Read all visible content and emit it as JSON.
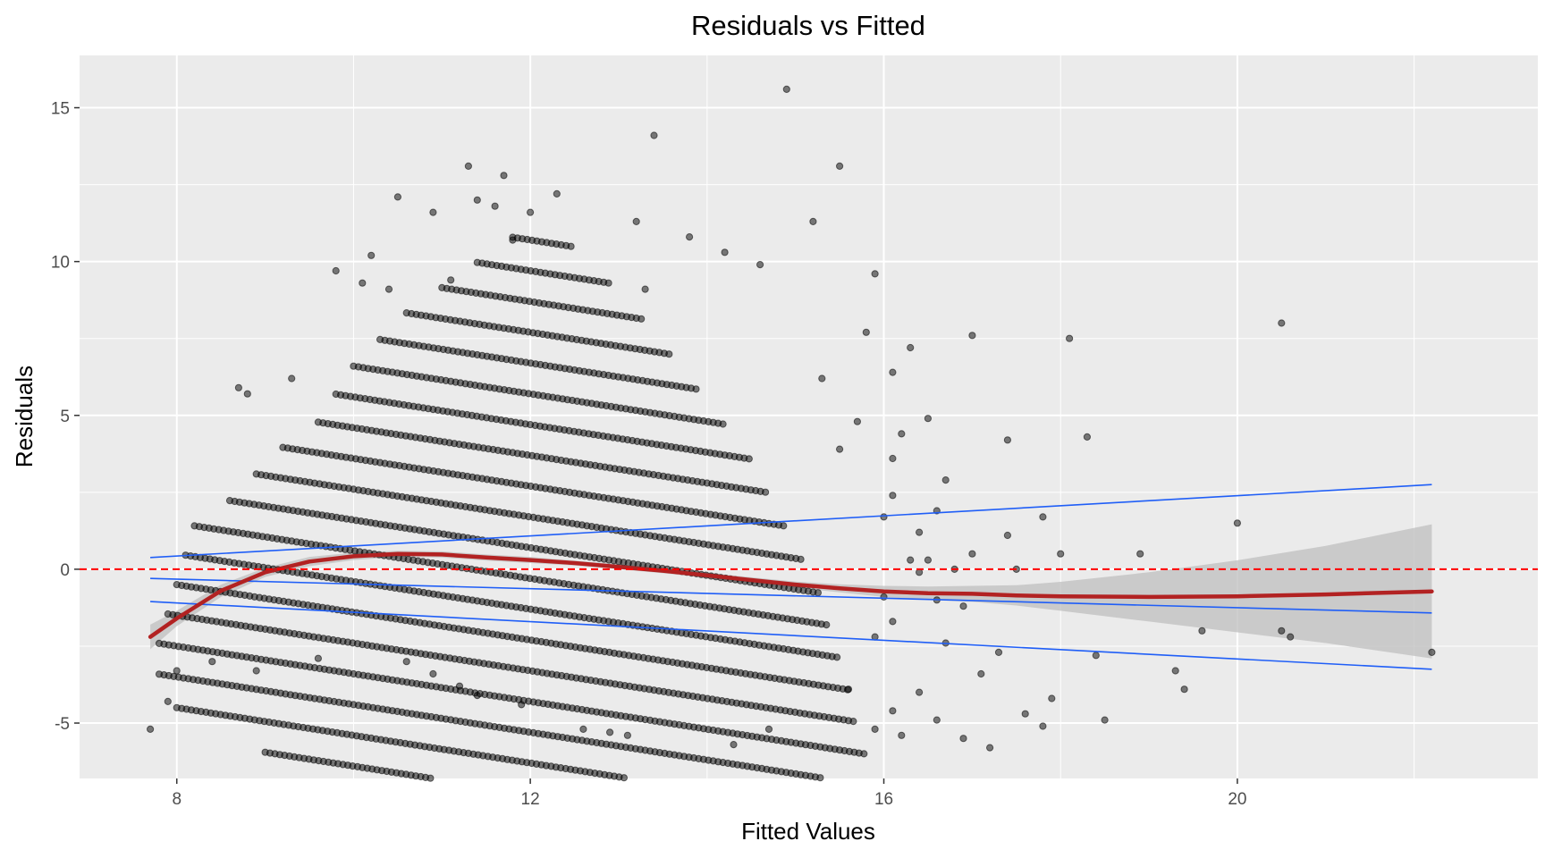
{
  "chart_data": {
    "type": "scatter",
    "title": "Residuals vs Fitted",
    "xlabel": "Fitted Values",
    "ylabel": "Residuals",
    "xlim": [
      6.9,
      23.4
    ],
    "ylim": [
      -6.8,
      16.7
    ],
    "x_ticks": [
      8,
      12,
      16,
      20
    ],
    "x_tick_labels": [
      "8",
      "12",
      "16",
      "20"
    ],
    "y_ticks": [
      -5,
      0,
      5,
      10,
      15
    ],
    "y_tick_labels": [
      "-5",
      "0",
      "5",
      "10",
      "15"
    ],
    "grid": true,
    "reference_line": {
      "y": 0,
      "color": "#ff0000",
      "style": "dashed"
    },
    "colors": {
      "panel": "#ebebeb",
      "grid": "#ffffff",
      "points": "#000000",
      "smooth": "#b22222",
      "band": "#bfbfbf",
      "quantile_lines": "#1f5ef7"
    },
    "smooth": {
      "x": [
        7.7,
        8.0,
        8.5,
        9.0,
        9.5,
        10.0,
        10.5,
        11.0,
        11.5,
        12.0,
        12.5,
        13.0,
        13.5,
        14.0,
        14.5,
        15.0,
        15.5,
        16.0,
        16.5,
        17.0,
        17.5,
        18.0,
        19.0,
        20.0,
        21.0,
        22.2
      ],
      "y": [
        -2.2,
        -1.6,
        -0.7,
        -0.1,
        0.25,
        0.42,
        0.5,
        0.48,
        0.38,
        0.3,
        0.2,
        0.08,
        -0.05,
        -0.2,
        -0.35,
        -0.5,
        -0.62,
        -0.72,
        -0.78,
        -0.8,
        -0.85,
        -0.88,
        -0.9,
        -0.88,
        -0.82,
        -0.72
      ],
      "lower": [
        -2.6,
        -1.85,
        -0.9,
        -0.25,
        0.1,
        0.3,
        0.4,
        0.38,
        0.28,
        0.2,
        0.12,
        0.0,
        -0.13,
        -0.28,
        -0.44,
        -0.6,
        -0.75,
        -0.9,
        -1.0,
        -1.06,
        -1.18,
        -1.35,
        -1.7,
        -2.05,
        -2.4,
        -2.9
      ],
      "upper": [
        -1.8,
        -1.35,
        -0.5,
        0.05,
        0.4,
        0.54,
        0.6,
        0.58,
        0.48,
        0.4,
        0.28,
        0.16,
        0.03,
        -0.12,
        -0.26,
        -0.4,
        -0.49,
        -0.54,
        -0.56,
        -0.54,
        -0.52,
        -0.41,
        -0.1,
        0.29,
        0.76,
        1.46
      ]
    },
    "quantile_lines": [
      {
        "x": [
          7.7,
          22.2
        ],
        "y": [
          0.38,
          2.75
        ]
      },
      {
        "x": [
          7.7,
          22.2
        ],
        "y": [
          -0.3,
          -1.42
        ]
      },
      {
        "x": [
          7.7,
          22.2
        ],
        "y": [
          -1.05,
          -3.25
        ]
      }
    ],
    "diagonal_bands": {
      "slope": -0.45,
      "levels": [
        -5.5,
        -4.5,
        -3.5,
        -2.5,
        -1.5,
        -0.5,
        0.5,
        1.5,
        2.5,
        3.5,
        4.5,
        5.5,
        6.5,
        7.5,
        8.5,
        9.5,
        10.5,
        11.5,
        12.5,
        13.5
      ],
      "x_start": [
        9.0,
        8.0,
        7.8,
        7.8,
        7.9,
        8.0,
        8.1,
        8.2,
        8.6,
        8.9,
        9.2,
        9.6,
        9.8,
        10.0,
        10.3,
        10.6,
        11.0,
        11.4,
        11.8,
        12.2
      ],
      "x_end": [
        15.9,
        15.9,
        15.9,
        15.8,
        15.7,
        15.6,
        15.5,
        15.4,
        15.3,
        15.1,
        14.9,
        14.7,
        14.5,
        14.2,
        13.9,
        13.6,
        13.3,
        12.9,
        12.5,
        12.1
      ],
      "step": 0.055
    },
    "points": [
      [
        7.7,
        -5.2
      ],
      [
        7.9,
        -4.3
      ],
      [
        8.0,
        -3.3
      ],
      [
        8.7,
        5.9
      ],
      [
        8.8,
        5.7
      ],
      [
        9.3,
        6.2
      ],
      [
        9.8,
        9.7
      ],
      [
        10.1,
        9.3
      ],
      [
        10.2,
        10.2
      ],
      [
        10.4,
        9.1
      ],
      [
        10.5,
        12.1
      ],
      [
        10.9,
        11.6
      ],
      [
        11.1,
        9.4
      ],
      [
        11.3,
        13.1
      ],
      [
        11.4,
        12.0
      ],
      [
        11.6,
        11.8
      ],
      [
        11.7,
        12.8
      ],
      [
        11.8,
        10.7
      ],
      [
        12.0,
        11.6
      ],
      [
        12.3,
        12.2
      ],
      [
        13.3,
        9.1
      ],
      [
        13.4,
        14.1
      ],
      [
        13.8,
        10.8
      ],
      [
        13.2,
        11.3
      ],
      [
        14.2,
        10.3
      ],
      [
        14.6,
        9.9
      ],
      [
        14.9,
        15.6
      ],
      [
        15.2,
        11.3
      ],
      [
        15.5,
        13.1
      ],
      [
        15.9,
        9.6
      ],
      [
        15.3,
        6.2
      ],
      [
        15.8,
        7.7
      ],
      [
        16.1,
        6.4
      ],
      [
        16.3,
        7.2
      ],
      [
        16.5,
        4.9
      ],
      [
        17.0,
        7.6
      ],
      [
        17.4,
        4.2
      ],
      [
        18.1,
        7.5
      ],
      [
        18.3,
        4.3
      ],
      [
        20.5,
        8.0
      ],
      [
        20.0,
        1.5
      ],
      [
        18.9,
        0.5
      ],
      [
        18.0,
        0.5
      ],
      [
        17.8,
        1.7
      ],
      [
        17.5,
        0.0
      ],
      [
        16.4,
        -0.1
      ],
      [
        16.9,
        -1.2
      ],
      [
        17.3,
        -2.7
      ],
      [
        17.9,
        -4.2
      ],
      [
        18.4,
        -2.8
      ],
      [
        18.5,
        -4.9
      ],
      [
        19.3,
        -3.3
      ],
      [
        19.4,
        -3.9
      ],
      [
        19.6,
        -2.0
      ],
      [
        20.5,
        -2.0
      ],
      [
        20.6,
        -2.2
      ],
      [
        22.2,
        -2.7
      ],
      [
        17.6,
        -4.7
      ],
      [
        17.8,
        -5.1
      ],
      [
        17.2,
        -5.8
      ],
      [
        16.9,
        -5.5
      ],
      [
        16.6,
        -4.9
      ],
      [
        16.2,
        -5.4
      ],
      [
        15.9,
        -5.2
      ],
      [
        14.3,
        -5.7
      ],
      [
        14.7,
        -5.2
      ],
      [
        13.1,
        -5.4
      ],
      [
        12.9,
        -5.3
      ],
      [
        12.6,
        -5.2
      ],
      [
        11.9,
        -4.4
      ],
      [
        11.4,
        -4.1
      ],
      [
        11.2,
        -3.8
      ],
      [
        10.9,
        -3.4
      ],
      [
        10.6,
        -3.0
      ],
      [
        9.6,
        -2.9
      ],
      [
        8.9,
        -3.3
      ],
      [
        8.4,
        -3.0
      ],
      [
        16.1,
        -4.6
      ],
      [
        16.4,
        -4.0
      ],
      [
        15.6,
        -3.9
      ],
      [
        15.5,
        3.9
      ],
      [
        15.7,
        4.8
      ],
      [
        16.1,
        2.4
      ],
      [
        16.0,
        1.7
      ],
      [
        16.2,
        4.4
      ],
      [
        16.4,
        1.2
      ],
      [
        16.7,
        2.9
      ],
      [
        16.6,
        1.9
      ],
      [
        17.4,
        1.1
      ],
      [
        16.1,
        3.6
      ],
      [
        16.3,
        0.3
      ],
      [
        16.6,
        -1.0
      ],
      [
        16.0,
        -0.9
      ],
      [
        15.9,
        -2.2
      ],
      [
        16.1,
        -1.7
      ],
      [
        16.5,
        0.3
      ],
      [
        17.0,
        0.5
      ],
      [
        16.7,
        -2.4
      ],
      [
        16.8,
        0.0
      ],
      [
        17.1,
        -3.4
      ]
    ]
  }
}
